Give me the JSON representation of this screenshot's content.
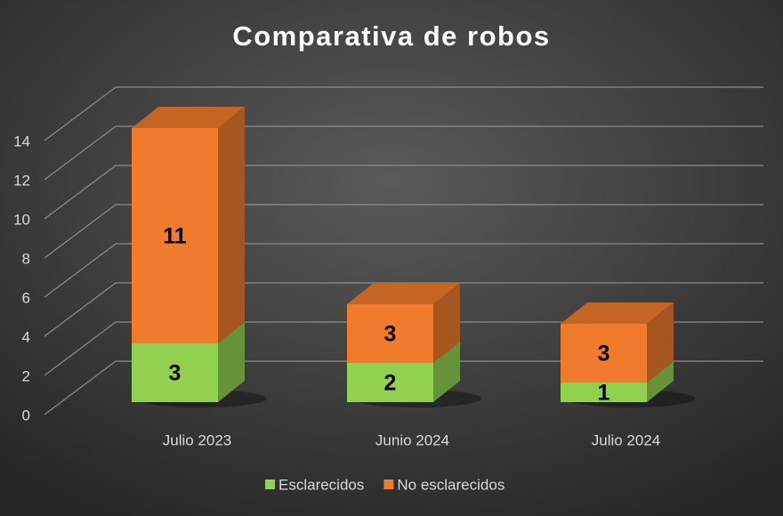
{
  "chart_data": {
    "type": "bar3d_stacked",
    "title": "Comparativa de robos",
    "categories": [
      "Julio 2023",
      "Junio 2024",
      "Julio 2024"
    ],
    "series": [
      {
        "name": "Esclarecidos",
        "color": "#92d050",
        "values": [
          3,
          2,
          1
        ]
      },
      {
        "name": "No esclarecidos",
        "color": "#f07b2c",
        "values": [
          11,
          3,
          3
        ]
      }
    ],
    "ylim": [
      0,
      14
    ],
    "yticks": [
      0,
      2,
      4,
      6,
      8,
      10,
      12,
      14
    ],
    "grid": true,
    "legend": "bottom"
  }
}
